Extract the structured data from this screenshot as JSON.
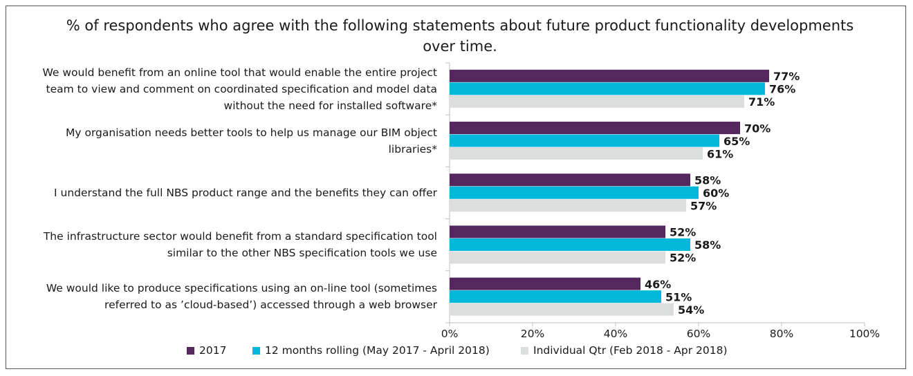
{
  "chart_data": {
    "type": "bar",
    "orientation": "horizontal",
    "title": "% of respondents who agree with the following statements about future product functionality developments over time.",
    "categories": [
      "We would benefit from an online tool that would enable the entire project team to view and comment on coordinated specification and model data without the need for installed software*",
      "My organisation needs better tools to help us manage our BIM object libraries*",
      "I understand the full NBS product range and the benefits they can offer",
      "The infrastructure sector would benefit from a standard specification tool similar to the other NBS specification tools we use",
      "We would like to produce specifications using an on-line tool (sometimes referred to as 'cloud-based') accessed through a web browser"
    ],
    "category_lines": [
      [
        "We would benefit from an online tool that would enable the entire project",
        "team to view and comment on coordinated specification and model data",
        "without the need for installed software*"
      ],
      [
        "My organisation needs better tools to help us manage our BIM object",
        "libraries*"
      ],
      [
        "I understand the full NBS product range and the benefits they can offer"
      ],
      [
        "The infrastructure sector would benefit from a standard specification tool",
        "similar to the other NBS specification tools we use"
      ],
      [
        "We would like to produce specifications using an on-line tool (sometimes",
        "referred to as ’cloud-based’) accessed through a web browser"
      ]
    ],
    "series": [
      {
        "name": "2017",
        "color": "#54275e",
        "values": [
          77,
          70,
          58,
          52,
          46
        ]
      },
      {
        "name": "12 months rolling (May 2017 - April 2018)",
        "color": "#00b8d9",
        "values": [
          76,
          65,
          60,
          58,
          51
        ]
      },
      {
        "name": "Individual Qtr (Feb 2018 - Apr 2018)",
        "color": "#dcdedd",
        "values": [
          71,
          61,
          57,
          52,
          54
        ]
      }
    ],
    "xlim": [
      0,
      100
    ],
    "xticks": [
      0,
      20,
      40,
      60,
      80,
      100
    ],
    "tick_suffix": "%",
    "value_suffix": "%",
    "legend_position": "bottom",
    "grid": false
  }
}
